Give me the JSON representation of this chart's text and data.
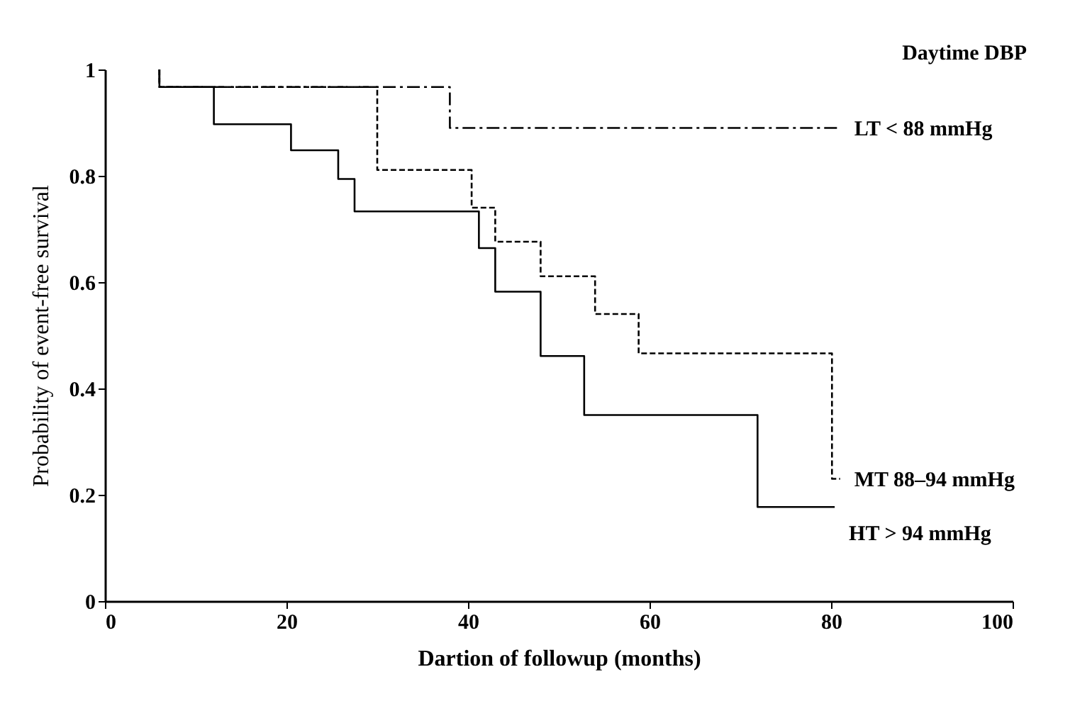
{
  "chart_data": {
    "type": "step",
    "xlabel": "Dartion of followup (months)",
    "ylabel": "Probability of event-free survival",
    "legend_title": "Daytime DBP",
    "xlim": [
      0,
      100
    ],
    "xticks": [
      0,
      20,
      40,
      60,
      80,
      100
    ],
    "ylim": [
      0,
      1
    ],
    "yticks": [
      0,
      0.2,
      0.4,
      0.6,
      0.8,
      1
    ],
    "grid": false,
    "legend": false,
    "marker": "none",
    "series": [
      {
        "name": "LT  < 88 mmHg",
        "color": "#000000",
        "line_style": "dashdot",
        "x": [
          6,
          6,
          38,
          81
        ],
        "values": [
          1,
          0.967,
          0.89,
          0.89
        ]
      },
      {
        "name": "MT  88–94 mmHg",
        "color": "#000000",
        "line_style": "dashed",
        "x": [
          6,
          6,
          30,
          40.4,
          43,
          48,
          54,
          58.8,
          80.1,
          81
        ],
        "values": [
          1,
          0.967,
          0.811,
          0.74,
          0.676,
          0.611,
          0.54,
          0.466,
          0.23,
          0.23
        ]
      },
      {
        "name": "HT  > 94 mmHg",
        "color": "#000000",
        "line_style": "solid",
        "x": [
          6,
          6,
          12,
          20.5,
          25.7,
          27.5,
          41.2,
          43,
          48,
          52.8,
          71.9,
          80.4
        ],
        "values": [
          1,
          0.967,
          0.897,
          0.848,
          0.794,
          0.733,
          0.664,
          0.582,
          0.461,
          0.35,
          0.177,
          0.177
        ]
      }
    ]
  }
}
